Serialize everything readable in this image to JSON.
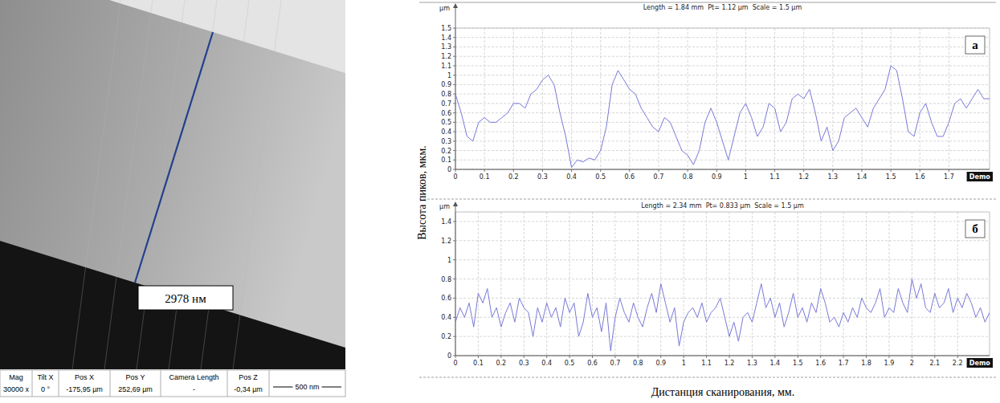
{
  "micrograph": {
    "measurement_label": "2978 нм",
    "info_bar": {
      "headers": [
        "Mag",
        "Tilt X",
        "Pos X",
        "Pos Y",
        "Camera Length",
        "Pos Z"
      ],
      "values": [
        "30000 x",
        "0 °",
        "-175,95 µm",
        "252,69 µm",
        "-",
        "-0,34 µm"
      ]
    },
    "scale_bar": "500 nm"
  },
  "axis_titles": {
    "ylabel": "Высота пиков, мкм.",
    "xlabel": "Дистанция сканирования, мм."
  },
  "chart_data": [
    {
      "type": "line",
      "title": "Length = 1.84 mm  Pt= 1.12 µm  Scale = 1.5 µm",
      "ylabel": "µm",
      "panel_label": "а",
      "annotations": [
        "Demo"
      ],
      "grid": true,
      "xlim": [
        0,
        1.84
      ],
      "ylim": [
        0,
        1.5
      ],
      "xticks": [
        0,
        0.1,
        0.2,
        0.3,
        0.4,
        0.5,
        0.6,
        0.7,
        0.8,
        0.9,
        1,
        1.1,
        1.2,
        1.3,
        1.4,
        1.5,
        1.6,
        1.7
      ],
      "yticks": [
        0,
        0.1,
        0.2,
        0.3,
        0.4,
        0.5,
        0.6,
        0.7,
        0.8,
        0.9,
        1,
        1.1,
        1.2,
        1.3,
        1.4,
        1.5
      ],
      "x": [
        0,
        0.02,
        0.04,
        0.06,
        0.08,
        0.1,
        0.12,
        0.14,
        0.16,
        0.18,
        0.2,
        0.22,
        0.24,
        0.26,
        0.28,
        0.3,
        0.32,
        0.34,
        0.36,
        0.38,
        0.4,
        0.42,
        0.44,
        0.46,
        0.48,
        0.5,
        0.52,
        0.54,
        0.56,
        0.58,
        0.6,
        0.62,
        0.64,
        0.66,
        0.68,
        0.7,
        0.72,
        0.74,
        0.76,
        0.78,
        0.8,
        0.82,
        0.84,
        0.86,
        0.88,
        0.9,
        0.92,
        0.94,
        0.96,
        0.98,
        1.0,
        1.02,
        1.04,
        1.06,
        1.08,
        1.1,
        1.12,
        1.14,
        1.16,
        1.18,
        1.2,
        1.22,
        1.24,
        1.26,
        1.28,
        1.3,
        1.32,
        1.34,
        1.36,
        1.38,
        1.4,
        1.42,
        1.44,
        1.46,
        1.48,
        1.5,
        1.52,
        1.54,
        1.56,
        1.58,
        1.6,
        1.62,
        1.64,
        1.66,
        1.68,
        1.7,
        1.72,
        1.74,
        1.76,
        1.78,
        1.8,
        1.82,
        1.84
      ],
      "series": [
        {
          "color": "#7878d8",
          "values": [
            0.8,
            0.6,
            0.35,
            0.3,
            0.5,
            0.55,
            0.5,
            0.5,
            0.55,
            0.6,
            0.7,
            0.7,
            0.65,
            0.8,
            0.85,
            0.95,
            1.0,
            0.9,
            0.6,
            0.35,
            0.02,
            0.1,
            0.08,
            0.12,
            0.1,
            0.2,
            0.45,
            0.9,
            1.05,
            0.95,
            0.85,
            0.8,
            0.65,
            0.55,
            0.45,
            0.4,
            0.55,
            0.5,
            0.35,
            0.2,
            0.15,
            0.05,
            0.2,
            0.5,
            0.65,
            0.5,
            0.3,
            0.1,
            0.35,
            0.6,
            0.7,
            0.55,
            0.35,
            0.45,
            0.7,
            0.65,
            0.4,
            0.5,
            0.75,
            0.8,
            0.75,
            0.85,
            0.6,
            0.3,
            0.45,
            0.2,
            0.3,
            0.55,
            0.6,
            0.65,
            0.55,
            0.45,
            0.65,
            0.75,
            0.85,
            1.1,
            1.05,
            0.75,
            0.4,
            0.35,
            0.6,
            0.7,
            0.5,
            0.35,
            0.35,
            0.5,
            0.7,
            0.75,
            0.65,
            0.75,
            0.85,
            0.75,
            0.75
          ]
        }
      ]
    },
    {
      "type": "line",
      "title": "Length = 2.34 mm  Pt= 0.833 µm  Scale = 1.5 µm",
      "ylabel": "µm",
      "panel_label": "б",
      "annotations": [
        "Demo"
      ],
      "grid": true,
      "xlim": [
        0,
        2.34
      ],
      "ylim": [
        0,
        1.5
      ],
      "xticks": [
        0,
        0.1,
        0.2,
        0.3,
        0.4,
        0.5,
        0.6,
        0.7,
        0.8,
        0.9,
        1,
        1.1,
        1.2,
        1.3,
        1.4,
        1.5,
        1.6,
        1.7,
        1.8,
        1.9,
        2,
        2.1,
        2.2
      ],
      "yticks": [
        0,
        0.2,
        0.4,
        0.6,
        0.8,
        1,
        1.2,
        1.4
      ],
      "x": [
        0,
        0.02,
        0.04,
        0.06,
        0.08,
        0.1,
        0.12,
        0.14,
        0.16,
        0.18,
        0.2,
        0.22,
        0.24,
        0.26,
        0.28,
        0.3,
        0.32,
        0.34,
        0.36,
        0.38,
        0.4,
        0.42,
        0.44,
        0.46,
        0.48,
        0.5,
        0.52,
        0.54,
        0.56,
        0.58,
        0.6,
        0.62,
        0.64,
        0.66,
        0.68,
        0.7,
        0.72,
        0.74,
        0.76,
        0.78,
        0.8,
        0.82,
        0.84,
        0.86,
        0.88,
        0.9,
        0.92,
        0.94,
        0.96,
        0.98,
        1.0,
        1.02,
        1.04,
        1.06,
        1.08,
        1.1,
        1.12,
        1.14,
        1.16,
        1.18,
        1.2,
        1.22,
        1.24,
        1.26,
        1.28,
        1.3,
        1.32,
        1.34,
        1.36,
        1.38,
        1.4,
        1.42,
        1.44,
        1.46,
        1.48,
        1.5,
        1.52,
        1.54,
        1.56,
        1.58,
        1.6,
        1.62,
        1.64,
        1.66,
        1.68,
        1.7,
        1.72,
        1.74,
        1.76,
        1.78,
        1.8,
        1.82,
        1.84,
        1.86,
        1.88,
        1.9,
        1.92,
        1.94,
        1.96,
        1.98,
        2.0,
        2.02,
        2.04,
        2.06,
        2.08,
        2.1,
        2.12,
        2.14,
        2.16,
        2.18,
        2.2,
        2.22,
        2.24,
        2.26,
        2.28,
        2.3,
        2.32,
        2.34
      ],
      "series": [
        {
          "color": "#7878d8",
          "values": [
            0.35,
            0.5,
            0.4,
            0.55,
            0.3,
            0.65,
            0.55,
            0.7,
            0.4,
            0.5,
            0.3,
            0.45,
            0.55,
            0.35,
            0.6,
            0.5,
            0.45,
            0.2,
            0.5,
            0.35,
            0.55,
            0.4,
            0.5,
            0.3,
            0.6,
            0.45,
            0.55,
            0.2,
            0.35,
            0.65,
            0.4,
            0.5,
            0.25,
            0.55,
            0.05,
            0.4,
            0.6,
            0.45,
            0.35,
            0.55,
            0.4,
            0.3,
            0.5,
            0.65,
            0.45,
            0.75,
            0.55,
            0.35,
            0.5,
            0.1,
            0.35,
            0.45,
            0.5,
            0.4,
            0.55,
            0.35,
            0.45,
            0.5,
            0.6,
            0.4,
            0.2,
            0.35,
            0.15,
            0.4,
            0.45,
            0.35,
            0.55,
            0.75,
            0.5,
            0.6,
            0.4,
            0.55,
            0.3,
            0.45,
            0.65,
            0.4,
            0.5,
            0.35,
            0.55,
            0.45,
            0.7,
            0.55,
            0.35,
            0.4,
            0.3,
            0.45,
            0.35,
            0.5,
            0.4,
            0.6,
            0.5,
            0.45,
            0.55,
            0.7,
            0.4,
            0.5,
            0.45,
            0.7,
            0.55,
            0.45,
            0.8,
            0.6,
            0.75,
            0.5,
            0.45,
            0.65,
            0.5,
            0.55,
            0.7,
            0.45,
            0.6,
            0.5,
            0.65,
            0.55,
            0.4,
            0.5,
            0.35,
            0.45
          ]
        }
      ]
    }
  ]
}
